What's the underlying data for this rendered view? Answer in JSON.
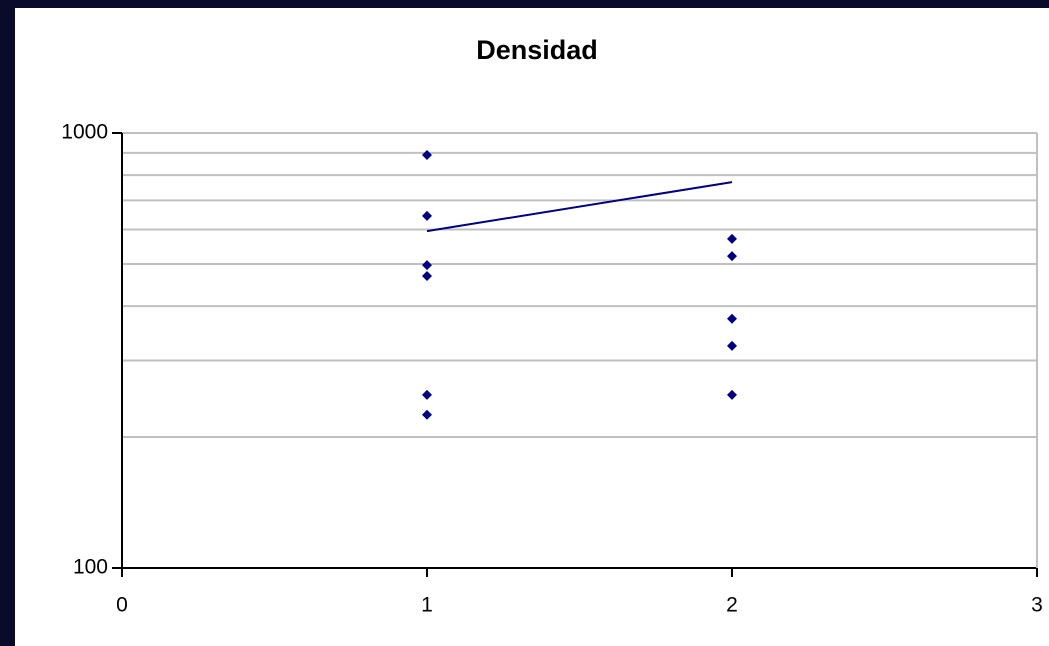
{
  "chart_data": {
    "type": "scatter",
    "title": "Densidad",
    "xlim": [
      0,
      3
    ],
    "xticks": [
      0,
      1,
      2,
      3
    ],
    "ylim": [
      100,
      1000
    ],
    "yticks": [
      100,
      1000
    ],
    "log_y": true,
    "y_minor_grid": [
      200,
      300,
      400,
      500,
      600,
      700,
      800,
      900
    ],
    "grid": true,
    "series": [
      {
        "kind": "scatter",
        "color": "#000080",
        "x": [
          1,
          1,
          1,
          1,
          1,
          1,
          2,
          2,
          2,
          2,
          2
        ],
        "values": [
          890,
          645,
          497,
          469,
          250,
          225,
          571,
          521,
          374,
          324,
          250
        ]
      },
      {
        "kind": "line",
        "color": "#000080",
        "x": [
          1,
          2
        ],
        "values": [
          595,
          771
        ]
      }
    ]
  }
}
